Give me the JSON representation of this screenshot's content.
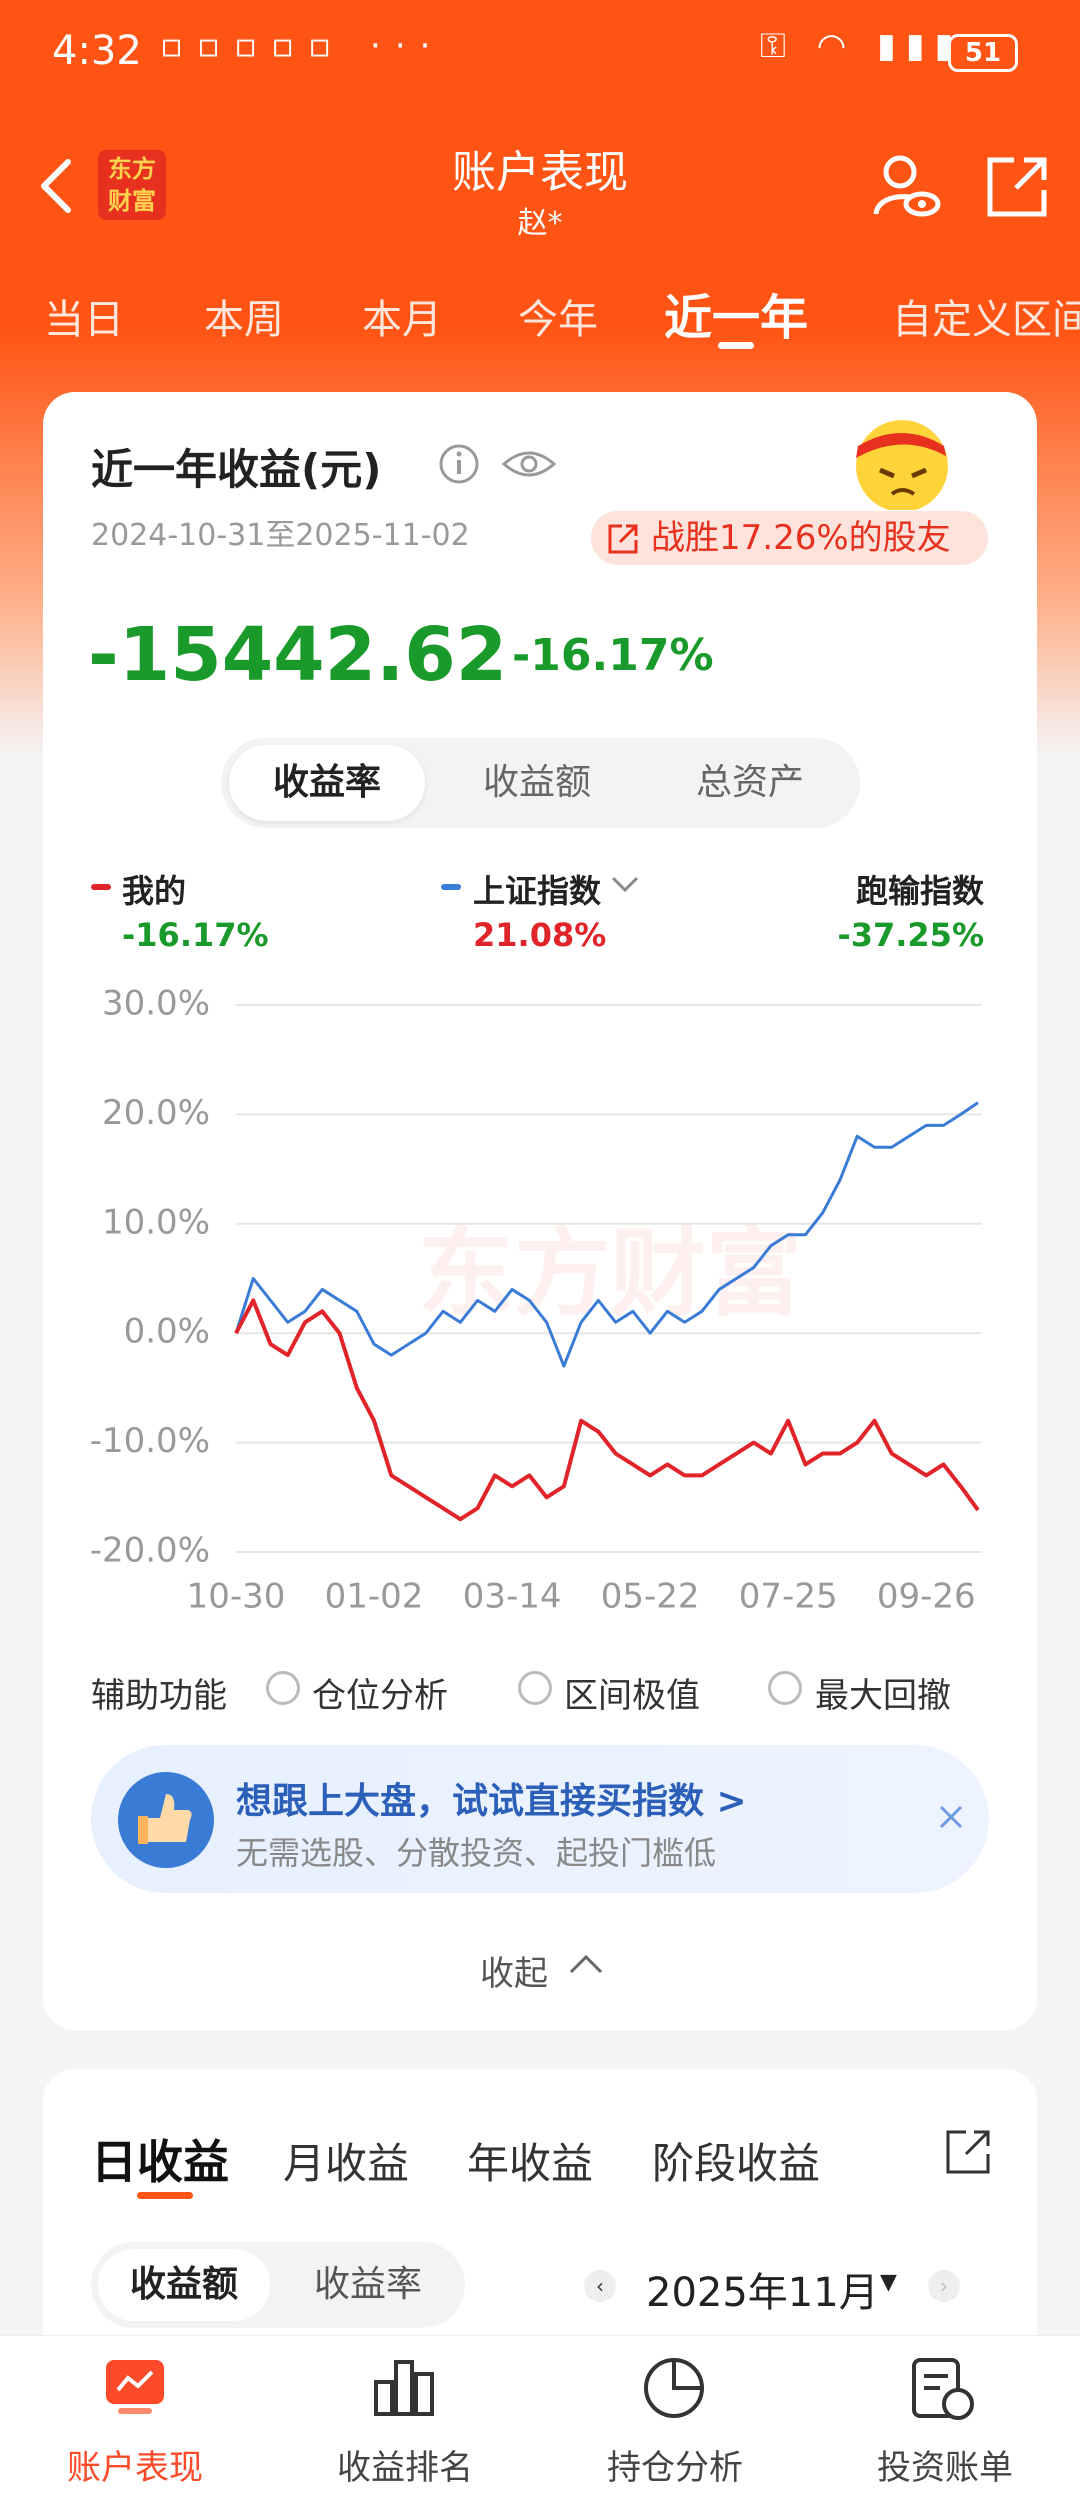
{
  "status_bar": {
    "time": "4:32",
    "battery": "51"
  },
  "header": {
    "logo_lines": [
      "东方",
      "财富"
    ],
    "title": "账户表现",
    "subtitle": "赵*"
  },
  "period_tabs": [
    "当日",
    "本周",
    "本月",
    "今年",
    "近一年",
    "自定义区间"
  ],
  "active_tab": 4,
  "summary": {
    "title": "近一年收益(元)",
    "date_range": "2024-10-31至2025-11-02",
    "badge": "战胜17.26%的股友",
    "profit": "-15442.62",
    "return": "-16.17%"
  },
  "metric_tabs": [
    "收益率",
    "收益额",
    "总资产"
  ],
  "chart_data": {
    "type": "line",
    "watermark": "东方财富",
    "categories": [
      "10-30",
      null,
      null,
      null,
      null,
      null,
      null,
      null,
      "01-02",
      null,
      null,
      null,
      null,
      null,
      null,
      null,
      "03-14",
      null,
      null,
      null,
      null,
      null,
      null,
      null,
      "05-22",
      null,
      null,
      null,
      null,
      null,
      null,
      null,
      "07-25",
      null,
      null,
      null,
      null,
      null,
      null,
      null,
      "09-26",
      null,
      null,
      null
    ],
    "series": [
      {
        "name": "我的",
        "color": "#e0242a",
        "return_label": "-16.17%",
        "return_color": "#1a9a2a",
        "values": [
          0,
          3,
          -1,
          -2,
          1,
          2,
          0,
          -5,
          -8,
          -13,
          -14,
          -15,
          -16,
          -17,
          -16,
          -13,
          -14,
          -13,
          -15,
          -14,
          -8,
          -9,
          -11,
          -12,
          -13,
          -12,
          -13,
          -13,
          -12,
          -11,
          -10,
          -11,
          -8,
          -12,
          -11,
          -11,
          -10,
          -8,
          -11,
          -12,
          -13,
          -12,
          -14,
          -16.17
        ]
      },
      {
        "name": "上证指数",
        "color": "#3a7bd5",
        "return_label": "21.08%",
        "return_color": "#e0242a",
        "values": [
          0,
          5,
          3,
          1,
          2,
          4,
          3,
          2,
          -1,
          -2,
          -1,
          0,
          2,
          1,
          3,
          2,
          4,
          3,
          1,
          -3,
          1,
          3,
          1,
          2,
          0,
          2,
          1,
          2,
          4,
          5,
          6,
          8,
          9,
          9,
          11,
          14,
          18,
          17,
          17,
          18,
          19,
          19,
          20,
          21.08
        ]
      }
    ],
    "compare": {
      "name": "跑输指数",
      "value_label": "-37.25%"
    },
    "ylim": [
      -20,
      30
    ],
    "yticks": [
      {
        "value": -20,
        "label": "-20.0%"
      },
      {
        "value": -10,
        "label": "-10.0%"
      },
      {
        "value": 0,
        "label": "0.0%"
      },
      {
        "value": 10,
        "label": "10.0%"
      },
      {
        "value": 20,
        "label": "20.0%"
      },
      {
        "value": 30,
        "label": "30.0%"
      }
    ],
    "grid": true
  },
  "tools": {
    "label": "辅助功能",
    "options": [
      "仓位分析",
      "区间极值",
      "最大回撤"
    ]
  },
  "promo": {
    "title": "想跟上大盘，试试直接买指数 >",
    "subtitle": "无需选股、分散投资、起投门槛低"
  },
  "collapse": "收起",
  "earnings": {
    "tabs": [
      "日收益",
      "月收益",
      "年收益",
      "阶段收益"
    ],
    "toggle": [
      "收益额",
      "收益率"
    ],
    "month": "2025年11月"
  },
  "nav": [
    "账户表现",
    "收益排名",
    "持仓分析",
    "投资账单"
  ]
}
